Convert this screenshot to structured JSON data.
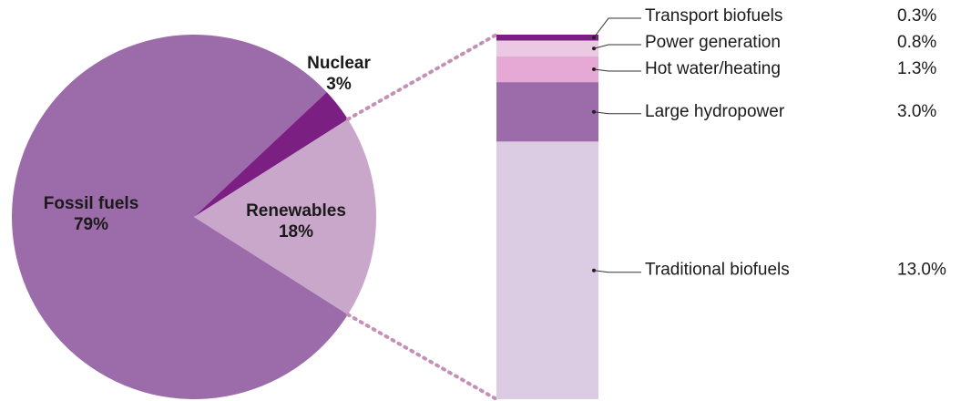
{
  "chart_data": [
    {
      "type": "pie",
      "categories": [
        "Fossil fuels",
        "Nuclear",
        "Renewables"
      ],
      "values": [
        79,
        3,
        18
      ],
      "value_labels": [
        "79%",
        "3%",
        "18%"
      ],
      "colors": [
        "#9c6ba9",
        "#7b1f83",
        "#c9a7ca"
      ]
    },
    {
      "type": "stacked-bar",
      "categories": [
        "Transport biofuels",
        "Power generation",
        "Hot water/heating",
        "Large hydropower",
        "Traditional biofuels"
      ],
      "values": [
        0.3,
        0.8,
        1.3,
        3.0,
        13.0
      ],
      "value_labels": [
        "0.3%",
        "0.8%",
        "1.3%",
        "3.0%",
        "13.0%"
      ],
      "colors": [
        "#7b1f83",
        "#ecc9e3",
        "#e6a8d4",
        "#9c6ba9",
        "#dccce3"
      ]
    }
  ]
}
